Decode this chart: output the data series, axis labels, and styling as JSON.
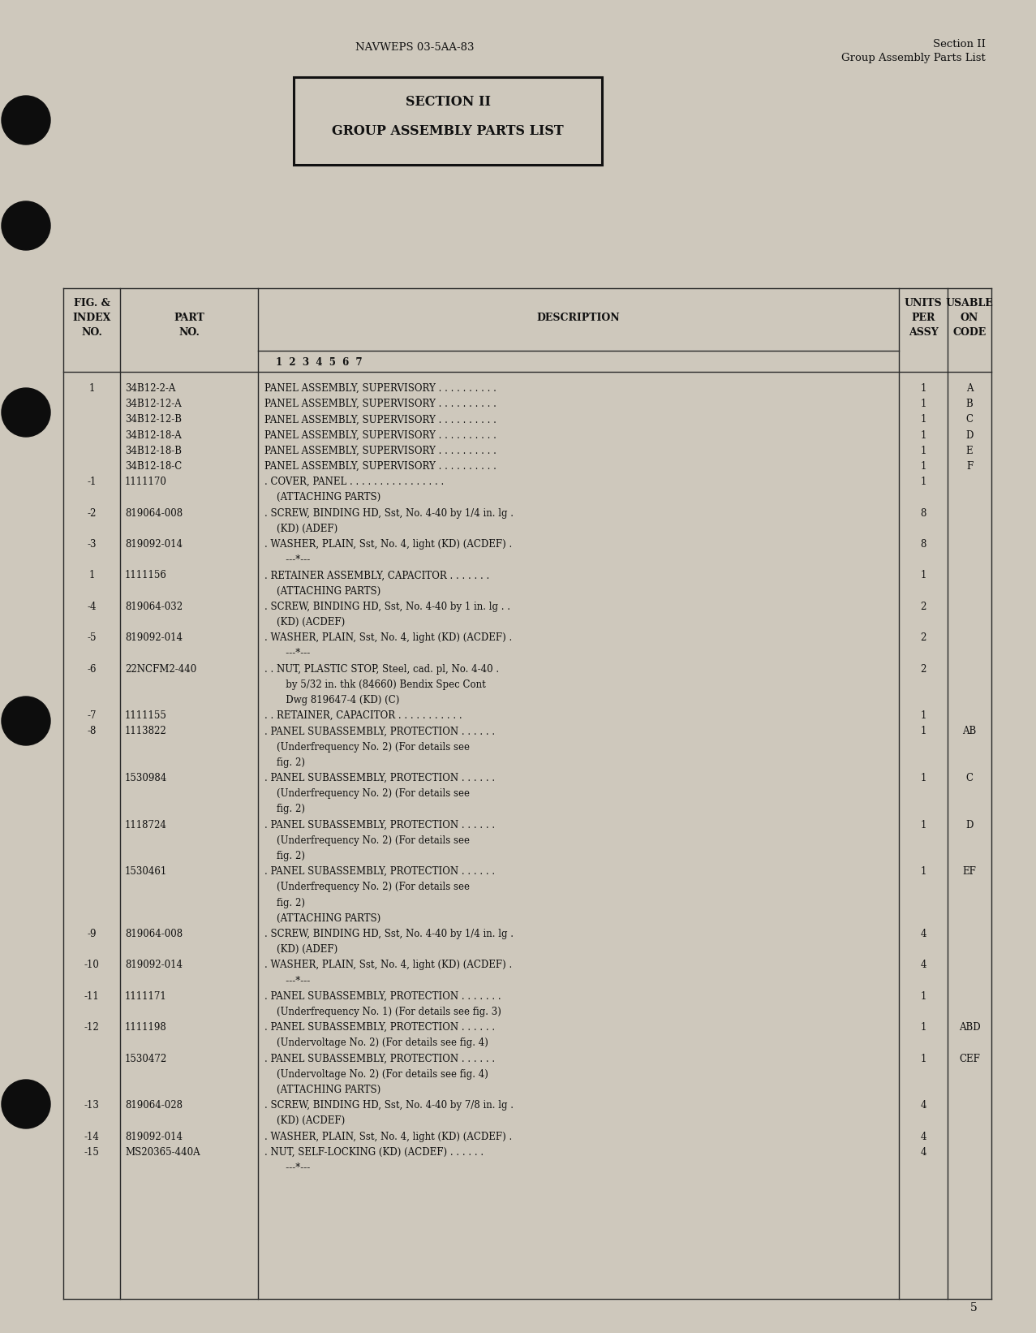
{
  "bg_color": "#cec8bc",
  "text_color": "#111111",
  "header_center": "NAVWEPS 03-5AA-83",
  "header_right1": "Section II",
  "header_right2": "Group Assembly Parts List",
  "section_title1": "SECTION II",
  "section_title2": "GROUP ASSEMBLY PARTS LIST",
  "page_number": "5",
  "rows": [
    {
      "fig": "1",
      "part": "34B12-2-A",
      "desc": "PANEL ASSEMBLY, SUPERVISORY . . . . . . . . . .",
      "units": "1",
      "code": "A"
    },
    {
      "fig": "",
      "part": "34B12-12-A",
      "desc": "PANEL ASSEMBLY, SUPERVISORY . . . . . . . . . .",
      "units": "1",
      "code": "B"
    },
    {
      "fig": "",
      "part": "34B12-12-B",
      "desc": "PANEL ASSEMBLY, SUPERVISORY . . . . . . . . . .",
      "units": "1",
      "code": "C"
    },
    {
      "fig": "",
      "part": "34B12-18-A",
      "desc": "PANEL ASSEMBLY, SUPERVISORY . . . . . . . . . .",
      "units": "1",
      "code": "D"
    },
    {
      "fig": "",
      "part": "34B12-18-B",
      "desc": "PANEL ASSEMBLY, SUPERVISORY . . . . . . . . . .",
      "units": "1",
      "code": "E"
    },
    {
      "fig": "",
      "part": "34B12-18-C",
      "desc": "PANEL ASSEMBLY, SUPERVISORY . . . . . . . . . .",
      "units": "1",
      "code": "F"
    },
    {
      "fig": "-1",
      "part": "1111170",
      "desc": ". COVER, PANEL . . . . . . . . . . . . . . . .",
      "units": "1",
      "code": ""
    },
    {
      "fig": "",
      "part": "",
      "desc": "    (ATTACHING PARTS)",
      "units": "",
      "code": ""
    },
    {
      "fig": "-2",
      "part": "819064-008",
      "desc": ". SCREW, BINDING HD, Sst, No. 4-40 by 1/4 in. lg .",
      "units": "8",
      "code": ""
    },
    {
      "fig": "",
      "part": "",
      "desc": "    (KD) (ADEF)",
      "units": "",
      "code": ""
    },
    {
      "fig": "-3",
      "part": "819092-014",
      "desc": ". WASHER, PLAIN, Sst, No. 4, light (KD) (ACDEF) .",
      "units": "8",
      "code": ""
    },
    {
      "fig": "",
      "part": "",
      "desc": "       ---*---",
      "units": "",
      "code": ""
    },
    {
      "fig": "1",
      "part": "1111156",
      "desc": ". RETAINER ASSEMBLY, CAPACITOR . . . . . . .",
      "units": "1",
      "code": ""
    },
    {
      "fig": "",
      "part": "",
      "desc": "    (ATTACHING PARTS)",
      "units": "",
      "code": ""
    },
    {
      "fig": "-4",
      "part": "819064-032",
      "desc": ". SCREW, BINDING HD, Sst, No. 4-40 by 1 in. lg . .",
      "units": "2",
      "code": ""
    },
    {
      "fig": "",
      "part": "",
      "desc": "    (KD) (ACDEF)",
      "units": "",
      "code": ""
    },
    {
      "fig": "-5",
      "part": "819092-014",
      "desc": ". WASHER, PLAIN, Sst, No. 4, light (KD) (ACDEF) .",
      "units": "2",
      "code": ""
    },
    {
      "fig": "",
      "part": "",
      "desc": "       ---*---",
      "units": "",
      "code": ""
    },
    {
      "fig": "-6",
      "part": "22NCFM2-440",
      "desc": ". . NUT, PLASTIC STOP, Steel, cad. pl, No. 4-40 .",
      "units": "2",
      "code": ""
    },
    {
      "fig": "",
      "part": "",
      "desc": "       by 5/32 in. thk (84660) Bendix Spec Cont",
      "units": "",
      "code": ""
    },
    {
      "fig": "",
      "part": "",
      "desc": "       Dwg 819647-4 (KD) (C)",
      "units": "",
      "code": ""
    },
    {
      "fig": "-7",
      "part": "1111155",
      "desc": ". . RETAINER, CAPACITOR . . . . . . . . . . .",
      "units": "1",
      "code": ""
    },
    {
      "fig": "-8",
      "part": "1113822",
      "desc": ". PANEL SUBASSEMBLY, PROTECTION . . . . . .",
      "units": "1",
      "code": "AB"
    },
    {
      "fig": "",
      "part": "",
      "desc": "    (Underfrequency No. 2) (For details see",
      "units": "",
      "code": ""
    },
    {
      "fig": "",
      "part": "",
      "desc": "    fig. 2)",
      "units": "",
      "code": ""
    },
    {
      "fig": "",
      "part": "1530984",
      "desc": ". PANEL SUBASSEMBLY, PROTECTION . . . . . .",
      "units": "1",
      "code": "C"
    },
    {
      "fig": "",
      "part": "",
      "desc": "    (Underfrequency No. 2) (For details see",
      "units": "",
      "code": ""
    },
    {
      "fig": "",
      "part": "",
      "desc": "    fig. 2)",
      "units": "",
      "code": ""
    },
    {
      "fig": "",
      "part": "1118724",
      "desc": ". PANEL SUBASSEMBLY, PROTECTION . . . . . .",
      "units": "1",
      "code": "D"
    },
    {
      "fig": "",
      "part": "",
      "desc": "    (Underfrequency No. 2) (For details see",
      "units": "",
      "code": ""
    },
    {
      "fig": "",
      "part": "",
      "desc": "    fig. 2)",
      "units": "",
      "code": ""
    },
    {
      "fig": "",
      "part": "1530461",
      "desc": ". PANEL SUBASSEMBLY, PROTECTION . . . . . .",
      "units": "1",
      "code": "EF"
    },
    {
      "fig": "",
      "part": "",
      "desc": "    (Underfrequency No. 2) (For details see",
      "units": "",
      "code": ""
    },
    {
      "fig": "",
      "part": "",
      "desc": "    fig. 2)",
      "units": "",
      "code": ""
    },
    {
      "fig": "",
      "part": "",
      "desc": "    (ATTACHING PARTS)",
      "units": "",
      "code": ""
    },
    {
      "fig": "-9",
      "part": "819064-008",
      "desc": ". SCREW, BINDING HD, Sst, No. 4-40 by 1/4 in. lg .",
      "units": "4",
      "code": ""
    },
    {
      "fig": "",
      "part": "",
      "desc": "    (KD) (ADEF)",
      "units": "",
      "code": ""
    },
    {
      "fig": "-10",
      "part": "819092-014",
      "desc": ". WASHER, PLAIN, Sst, No. 4, light (KD) (ACDEF) .",
      "units": "4",
      "code": ""
    },
    {
      "fig": "",
      "part": "",
      "desc": "       ---*---",
      "units": "",
      "code": ""
    },
    {
      "fig": "-11",
      "part": "1111171",
      "desc": ". PANEL SUBASSEMBLY, PROTECTION . . . . . . .",
      "units": "1",
      "code": ""
    },
    {
      "fig": "",
      "part": "",
      "desc": "    (Underfrequency No. 1) (For details see fig. 3)",
      "units": "",
      "code": ""
    },
    {
      "fig": "-12",
      "part": "1111198",
      "desc": ". PANEL SUBASSEMBLY, PROTECTION . . . . . .",
      "units": "1",
      "code": "ABD"
    },
    {
      "fig": "",
      "part": "",
      "desc": "    (Undervoltage No. 2) (For details see fig. 4)",
      "units": "",
      "code": ""
    },
    {
      "fig": "",
      "part": "1530472",
      "desc": ". PANEL SUBASSEMBLY, PROTECTION . . . . . .",
      "units": "1",
      "code": "CEF"
    },
    {
      "fig": "",
      "part": "",
      "desc": "    (Undervoltage No. 2) (For details see fig. 4)",
      "units": "",
      "code": ""
    },
    {
      "fig": "",
      "part": "",
      "desc": "    (ATTACHING PARTS)",
      "units": "",
      "code": ""
    },
    {
      "fig": "-13",
      "part": "819064-028",
      "desc": ". SCREW, BINDING HD, Sst, No. 4-40 by 7/8 in. lg .",
      "units": "4",
      "code": ""
    },
    {
      "fig": "",
      "part": "",
      "desc": "    (KD) (ACDEF)",
      "units": "",
      "code": ""
    },
    {
      "fig": "-14",
      "part": "819092-014",
      "desc": ". WASHER, PLAIN, Sst, No. 4, light (KD) (ACDEF) .",
      "units": "4",
      "code": ""
    },
    {
      "fig": "-15",
      "part": "MS20365-440A",
      "desc": ". NUT, SELF-LOCKING (KD) (ACDEF) . . . . . .",
      "units": "4",
      "code": ""
    },
    {
      "fig": "",
      "part": "",
      "desc": "       ---*---",
      "units": "",
      "code": ""
    }
  ]
}
